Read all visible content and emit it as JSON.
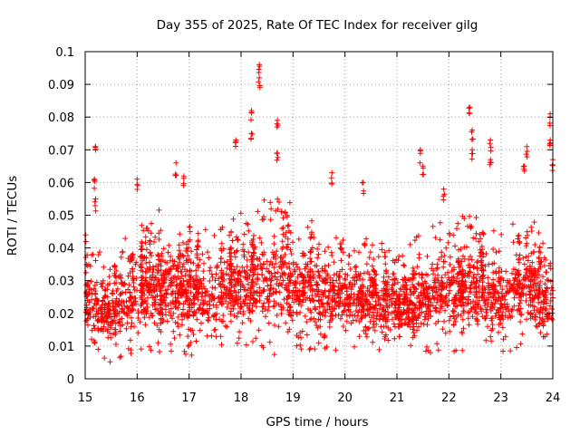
{
  "chart_data": {
    "type": "scatter",
    "title": "Day 355 of 2025, Rate Of TEC Index for receiver gilg",
    "xlabel": "GPS time / hours",
    "ylabel": "ROTI / TECUs",
    "xlim": [
      15,
      24
    ],
    "ylim": [
      0,
      0.1
    ],
    "x_ticks": [
      15,
      16,
      17,
      18,
      19,
      20,
      21,
      22,
      23,
      24
    ],
    "x_tick_labels": [
      "15",
      "16",
      "17",
      "18",
      "19",
      "20",
      "21",
      "22",
      "23",
      "24"
    ],
    "y_ticks": [
      0,
      0.01,
      0.02,
      0.03,
      0.04,
      0.05,
      0.06,
      0.07,
      0.08,
      0.09,
      0.1
    ],
    "y_tick_labels": [
      "0",
      "0.01",
      "0.02",
      "0.03",
      "0.04",
      "0.05",
      "0.06",
      "0.07",
      "0.08",
      "0.09",
      "0.1"
    ],
    "grid": true,
    "marker": "+",
    "marker_color": "#ff0000",
    "series": [
      {
        "name": "ROTI",
        "band_x": [
          15.0,
          15.5,
          16.0,
          16.5,
          17.0,
          17.5,
          18.0,
          18.5,
          19.0,
          19.5,
          20.0,
          20.5,
          21.0,
          21.5,
          22.0,
          22.5,
          23.0,
          23.5,
          24.0
        ],
        "band_low": [
          0.008,
          0.005,
          0.008,
          0.008,
          0.006,
          0.008,
          0.009,
          0.008,
          0.006,
          0.008,
          0.009,
          0.009,
          0.008,
          0.007,
          0.008,
          0.008,
          0.007,
          0.008,
          0.008
        ],
        "band_high": [
          0.045,
          0.038,
          0.05,
          0.052,
          0.05,
          0.045,
          0.052,
          0.055,
          0.055,
          0.047,
          0.045,
          0.045,
          0.04,
          0.045,
          0.05,
          0.052,
          0.045,
          0.052,
          0.045
        ],
        "peaks": [
          {
            "x": 15.2,
            "y": 0.071
          },
          {
            "x": 15.18,
            "y": 0.061
          },
          {
            "x": 15.2,
            "y": 0.055
          },
          {
            "x": 16.0,
            "y": 0.061
          },
          {
            "x": 16.75,
            "y": 0.066
          },
          {
            "x": 16.9,
            "y": 0.062
          },
          {
            "x": 17.9,
            "y": 0.073
          },
          {
            "x": 18.2,
            "y": 0.082
          },
          {
            "x": 18.2,
            "y": 0.075
          },
          {
            "x": 18.35,
            "y": 0.096
          },
          {
            "x": 18.35,
            "y": 0.092
          },
          {
            "x": 18.7,
            "y": 0.079
          },
          {
            "x": 18.7,
            "y": 0.069
          },
          {
            "x": 19.75,
            "y": 0.063
          },
          {
            "x": 20.35,
            "y": 0.06
          },
          {
            "x": 21.45,
            "y": 0.07
          },
          {
            "x": 21.5,
            "y": 0.065
          },
          {
            "x": 21.9,
            "y": 0.058
          },
          {
            "x": 22.4,
            "y": 0.083
          },
          {
            "x": 22.45,
            "y": 0.076
          },
          {
            "x": 22.45,
            "y": 0.07
          },
          {
            "x": 22.8,
            "y": 0.073
          },
          {
            "x": 22.8,
            "y": 0.067
          },
          {
            "x": 23.5,
            "y": 0.071
          },
          {
            "x": 23.45,
            "y": 0.065
          },
          {
            "x": 23.95,
            "y": 0.081
          },
          {
            "x": 23.95,
            "y": 0.073
          },
          {
            "x": 24.0,
            "y": 0.067
          }
        ]
      }
    ]
  }
}
